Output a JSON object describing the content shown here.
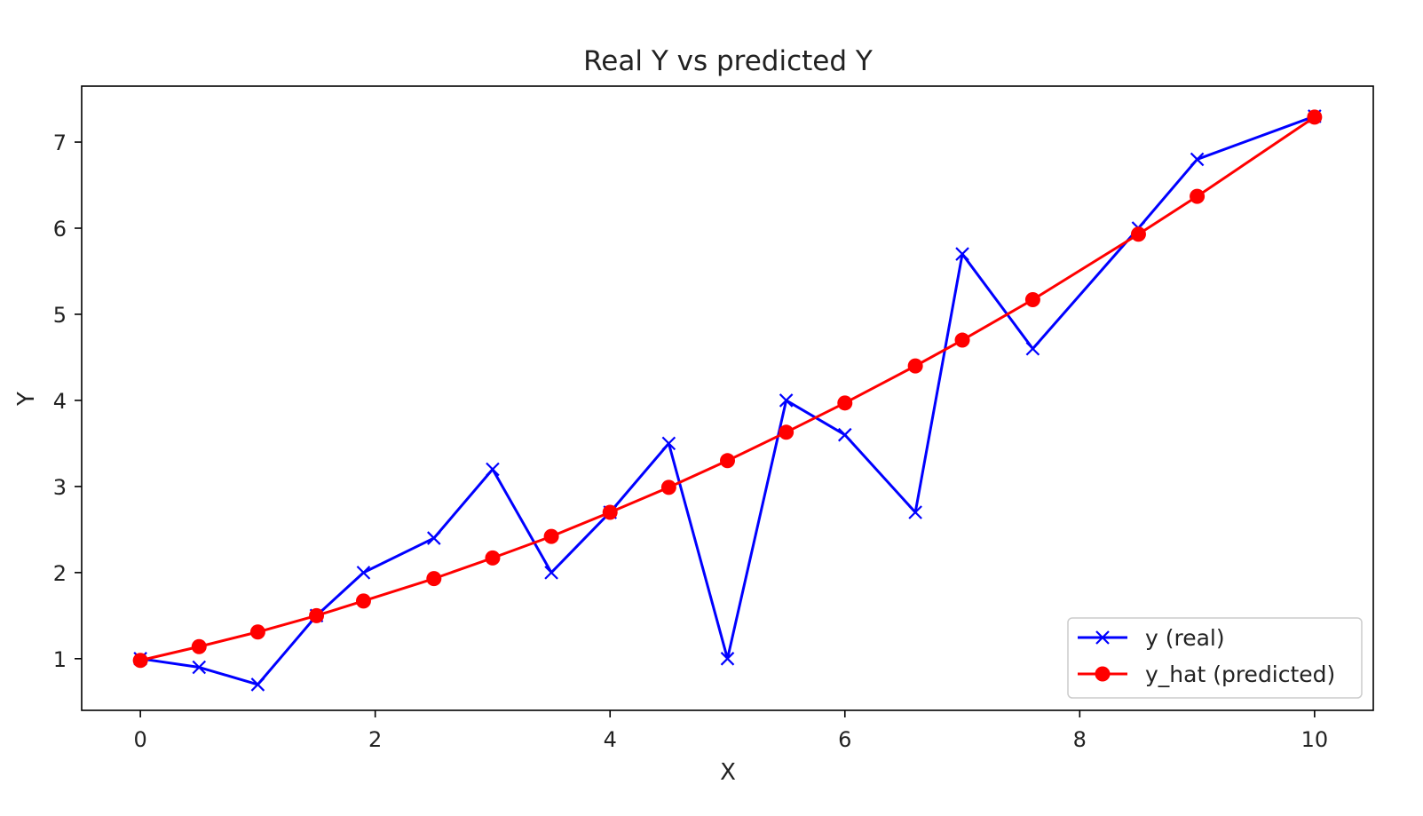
{
  "chart_data": {
    "type": "line",
    "title": "Real Y vs predicted Y",
    "xlabel": "X",
    "ylabel": "Y",
    "xlim": [
      -0.5,
      10.5
    ],
    "ylim": [
      0.4,
      7.65
    ],
    "xticks": [
      0,
      2,
      4,
      6,
      8,
      10
    ],
    "yticks": [
      1,
      2,
      3,
      4,
      5,
      6,
      7
    ],
    "grid": false,
    "legend_position": "lower-right",
    "series": [
      {
        "name": "y (real)",
        "color": "#0000ff",
        "marker": "x",
        "points": [
          {
            "x": 0,
            "y": 1.0
          },
          {
            "x": 0.5,
            "y": 0.9
          },
          {
            "x": 1.0,
            "y": 0.7
          },
          {
            "x": 1.5,
            "y": 1.5
          },
          {
            "x": 1.9,
            "y": 2.0
          },
          {
            "x": 2.5,
            "y": 2.4
          },
          {
            "x": 3.0,
            "y": 3.2
          },
          {
            "x": 3.5,
            "y": 2.0
          },
          {
            "x": 4.0,
            "y": 2.7
          },
          {
            "x": 4.5,
            "y": 3.5
          },
          {
            "x": 5.0,
            "y": 1.0
          },
          {
            "x": 5.5,
            "y": 4.0
          },
          {
            "x": 6.0,
            "y": 3.6
          },
          {
            "x": 6.6,
            "y": 2.7
          },
          {
            "x": 7.0,
            "y": 5.7
          },
          {
            "x": 7.6,
            "y": 4.6
          },
          {
            "x": 8.5,
            "y": 6.0
          },
          {
            "x": 9.0,
            "y": 6.8
          },
          {
            "x": 10.0,
            "y": 7.3
          }
        ]
      },
      {
        "name": "y_hat (predicted)",
        "color": "#ff0000",
        "marker": "o",
        "points": [
          {
            "x": 0,
            "y": 0.98
          },
          {
            "x": 0.5,
            "y": 1.14
          },
          {
            "x": 1.0,
            "y": 1.31
          },
          {
            "x": 1.5,
            "y": 1.5
          },
          {
            "x": 1.9,
            "y": 1.67
          },
          {
            "x": 2.5,
            "y": 1.93
          },
          {
            "x": 3.0,
            "y": 2.17
          },
          {
            "x": 3.5,
            "y": 2.42
          },
          {
            "x": 4.0,
            "y": 2.7
          },
          {
            "x": 4.5,
            "y": 2.99
          },
          {
            "x": 5.0,
            "y": 3.3
          },
          {
            "x": 5.5,
            "y": 3.63
          },
          {
            "x": 6.0,
            "y": 3.97
          },
          {
            "x": 6.6,
            "y": 4.4
          },
          {
            "x": 7.0,
            "y": 4.7
          },
          {
            "x": 7.6,
            "y": 5.17
          },
          {
            "x": 8.5,
            "y": 5.93
          },
          {
            "x": 9.0,
            "y": 6.37
          },
          {
            "x": 10.0,
            "y": 7.29
          }
        ]
      }
    ]
  }
}
